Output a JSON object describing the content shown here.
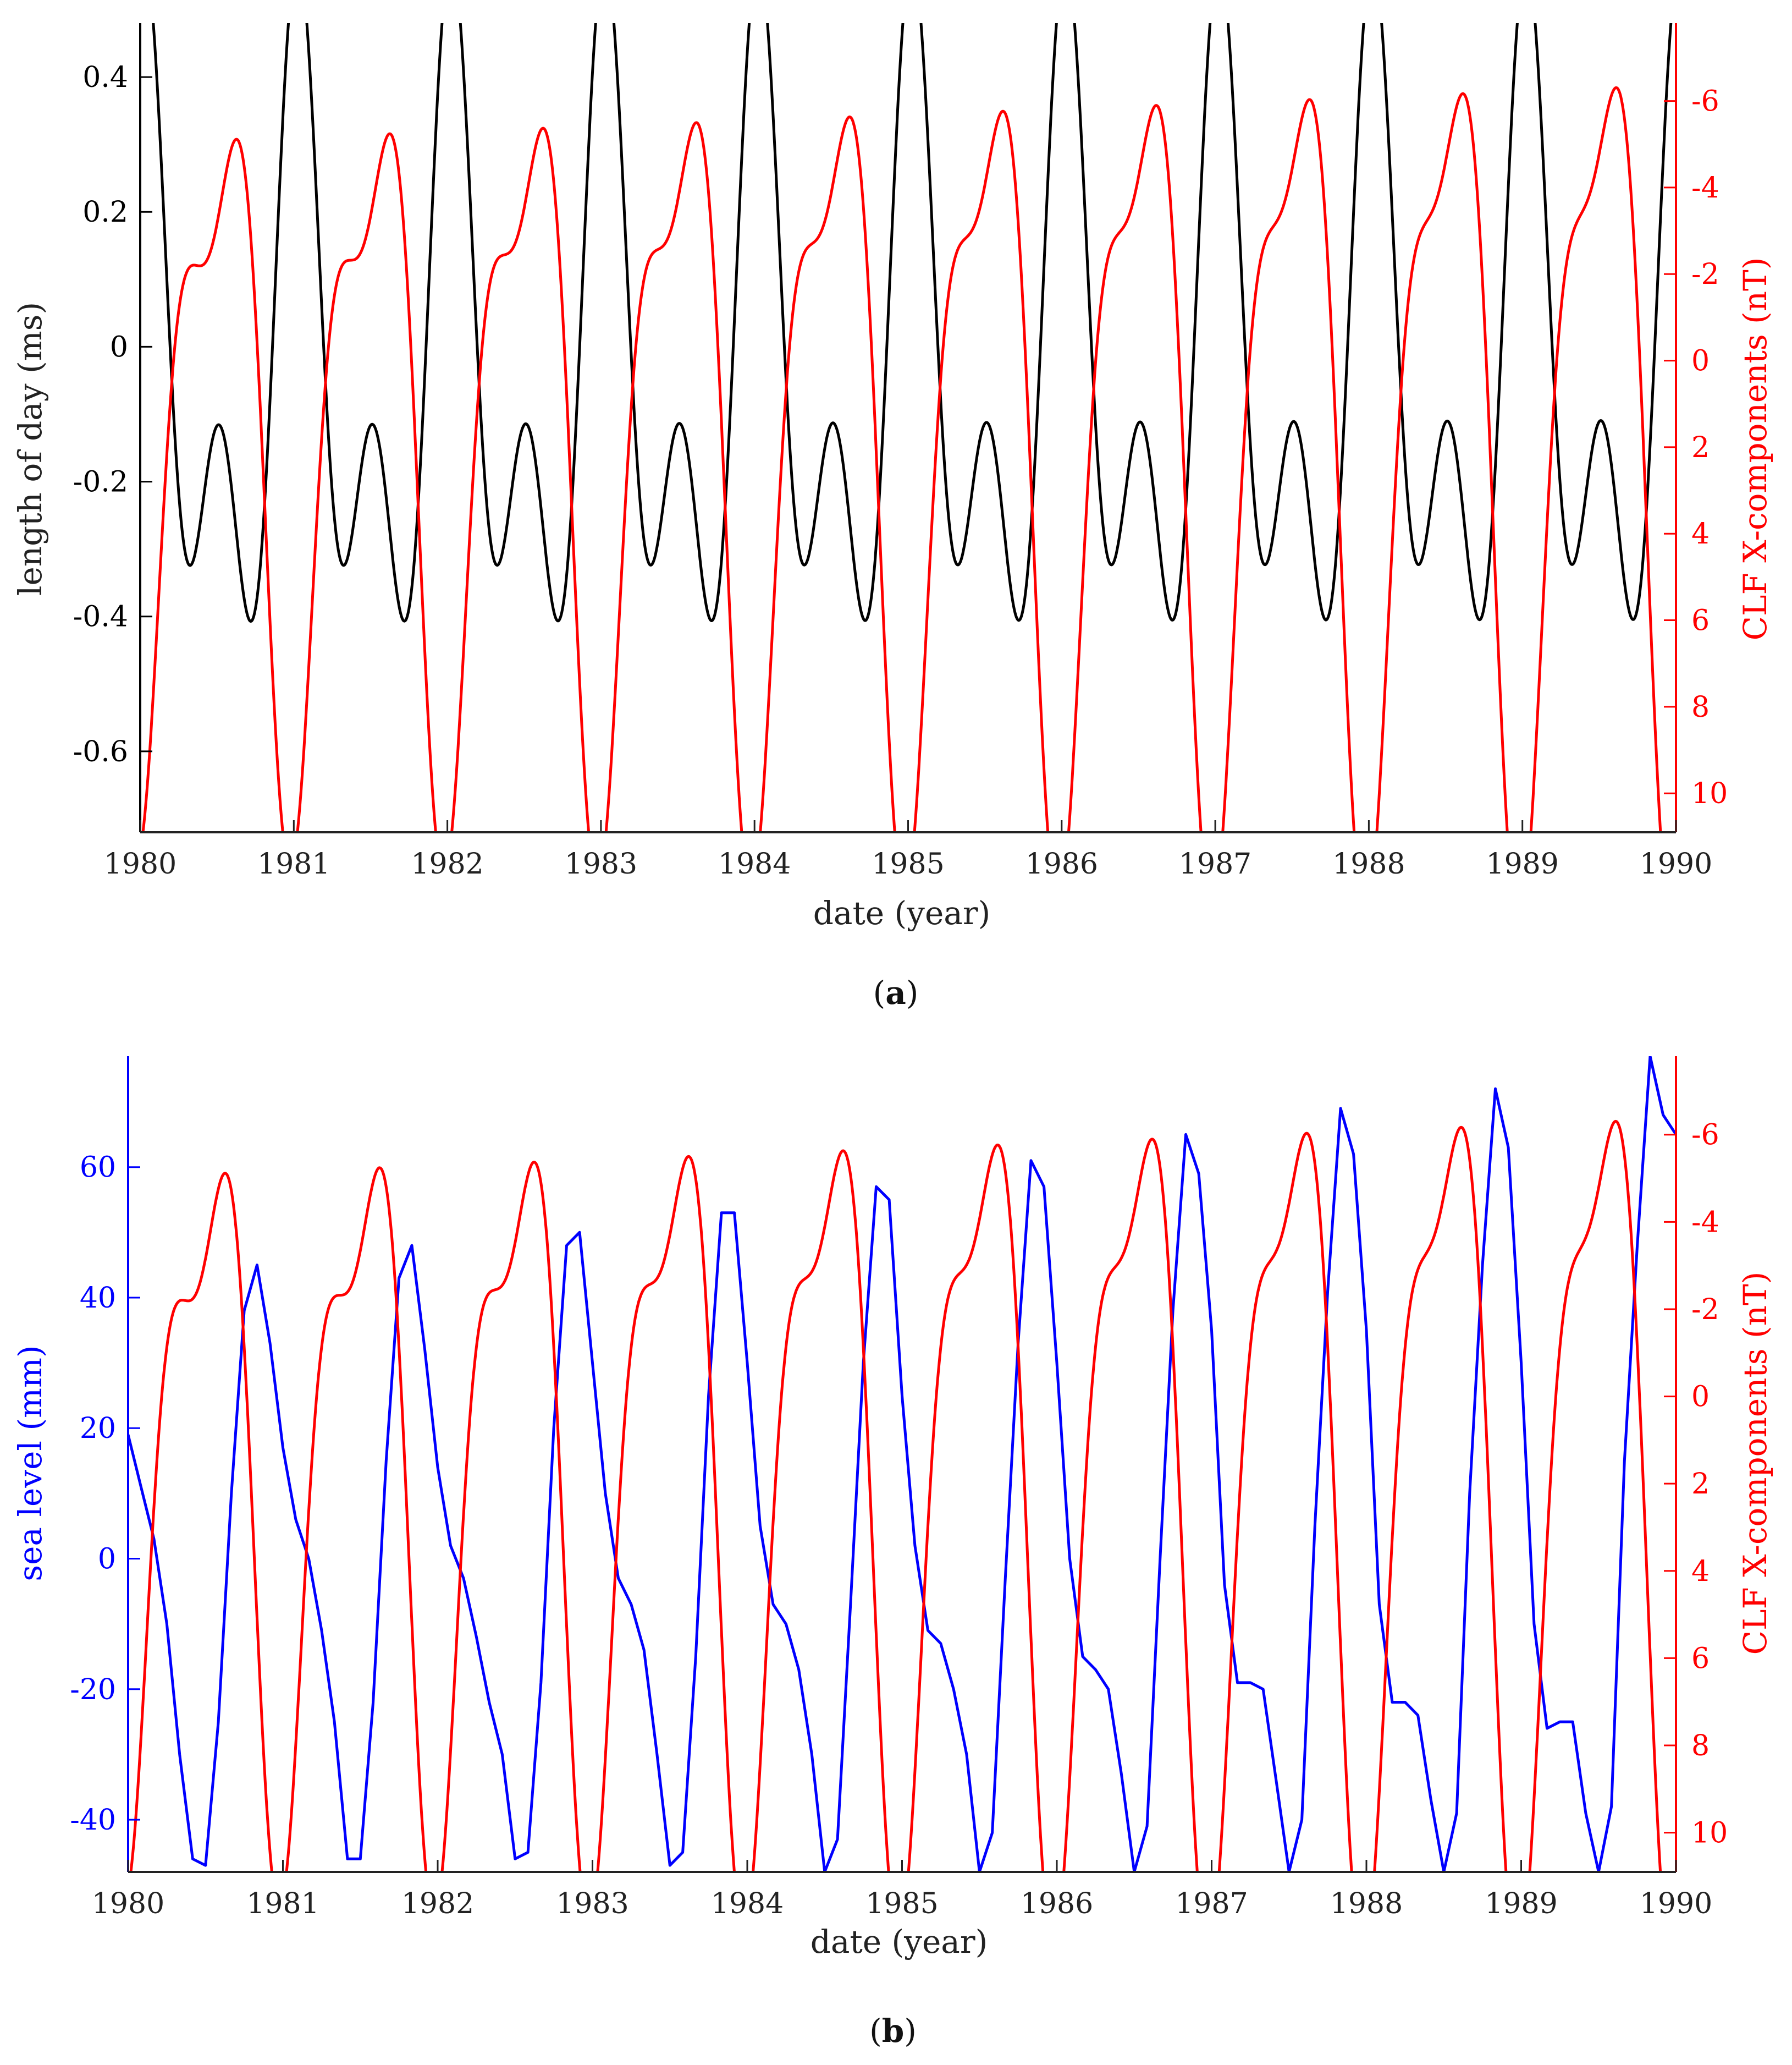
{
  "chart_data": [
    {
      "panel": "a",
      "caption": "(a)",
      "type": "line",
      "xlabel": "date (year)",
      "xlim": [
        1980,
        1990
      ],
      "x_ticks": [
        "1980",
        "1981",
        "1982",
        "1983",
        "1984",
        "1985",
        "1986",
        "1987",
        "1988",
        "1989",
        "1990"
      ],
      "left_axis": {
        "label": "length of day (ms)",
        "color": "#000000",
        "ylim": [
          -0.72,
          0.48
        ],
        "ticks": [
          {
            "value": 0.4,
            "label": "0.4"
          },
          {
            "value": 0.2,
            "label": "0.2"
          },
          {
            "value": 0.0,
            "label": "0"
          },
          {
            "value": -0.2,
            "label": "-0.2"
          },
          {
            "value": -0.4,
            "label": "-0.4"
          },
          {
            "value": -0.6,
            "label": "-0.6"
          }
        ]
      },
      "right_axis": {
        "label": "CLF X-components (nT)",
        "color": "#ff0000",
        "reversed": true,
        "ylim": [
          -7.8,
          10.9
        ],
        "ticks": [
          {
            "value": -6,
            "label": "-6"
          },
          {
            "value": -4,
            "label": "-4"
          },
          {
            "value": -2,
            "label": "-2"
          },
          {
            "value": 0,
            "label": "0"
          },
          {
            "value": 2,
            "label": "2"
          },
          {
            "value": 4,
            "label": "4"
          },
          {
            "value": 6,
            "label": "6"
          },
          {
            "value": 8,
            "label": "8"
          },
          {
            "value": 10,
            "label": "10"
          }
        ]
      },
      "series": [
        {
          "name": "length of day",
          "axis": "left",
          "color": "#000000",
          "model": {
            "type": "lod",
            "mean": -0.04,
            "annual_amp": 0.35,
            "semi_amp": 0.27,
            "annual_phase": 0.54,
            "semi_phase": 0.27,
            "amp_drift": -0.002
          }
        },
        {
          "name": "CLF X-component",
          "axis": "right",
          "color": "#ff0000",
          "model": {
            "type": "clf",
            "mean": 1.5,
            "annual_amp": 7.2,
            "semi_amp": 3.0,
            "annual_phase": 0.5,
            "semi_phase": 0.21,
            "amp_drift": 0.025
          }
        }
      ]
    },
    {
      "panel": "b",
      "caption": "(b)",
      "type": "line",
      "xlabel": "date (year)",
      "xlim": [
        1980,
        1990
      ],
      "x_ticks": [
        "1980",
        "1981",
        "1982",
        "1983",
        "1984",
        "1985",
        "1986",
        "1987",
        "1988",
        "1989",
        "1990"
      ],
      "left_axis": {
        "label": "sea level (mm)",
        "color": "#0000ff",
        "ylim": [
          -48,
          77
        ],
        "ticks": [
          {
            "value": 60,
            "label": "60"
          },
          {
            "value": 40,
            "label": "40"
          },
          {
            "value": 20,
            "label": "20"
          },
          {
            "value": 0,
            "label": "0"
          },
          {
            "value": -20,
            "label": "-20"
          },
          {
            "value": -40,
            "label": "-40"
          }
        ]
      },
      "right_axis": {
        "label": "CLF X-components (nT)",
        "color": "#ff0000",
        "reversed": true,
        "ylim": [
          -7.8,
          10.9
        ],
        "ticks": [
          {
            "value": -6,
            "label": "-6"
          },
          {
            "value": -4,
            "label": "-4"
          },
          {
            "value": -2,
            "label": "-2"
          },
          {
            "value": 0,
            "label": "0"
          },
          {
            "value": 2,
            "label": "2"
          },
          {
            "value": 4,
            "label": "4"
          },
          {
            "value": 6,
            "label": "6"
          },
          {
            "value": 8,
            "label": "8"
          },
          {
            "value": 10,
            "label": "10"
          }
        ]
      },
      "series": [
        {
          "name": "sea level",
          "axis": "left",
          "color": "#0000ff",
          "x": [
            1980.0,
            1980.083,
            1980.167,
            1980.25,
            1980.333,
            1980.417,
            1980.5,
            1980.583,
            1980.667,
            1980.75,
            1980.833,
            1980.917,
            1981.0,
            1981.083,
            1981.167,
            1981.25,
            1981.333,
            1981.417,
            1981.5,
            1981.583,
            1981.667,
            1981.75,
            1981.833,
            1981.917,
            1982.0,
            1982.083,
            1982.167,
            1982.25,
            1982.333,
            1982.417,
            1982.5,
            1982.583,
            1982.667,
            1982.75,
            1982.833,
            1982.917,
            1983.0,
            1983.083,
            1983.167,
            1983.25,
            1983.333,
            1983.417,
            1983.5,
            1983.583,
            1983.667,
            1983.75,
            1983.833,
            1983.917,
            1984.0,
            1984.083,
            1984.167,
            1984.25,
            1984.333,
            1984.417,
            1984.5,
            1984.583,
            1984.667,
            1984.75,
            1984.833,
            1984.917,
            1985.0,
            1985.083,
            1985.167,
            1985.25,
            1985.333,
            1985.417,
            1985.5,
            1985.583,
            1985.667,
            1985.75,
            1985.833,
            1985.917,
            1986.0,
            1986.083,
            1986.167,
            1986.25,
            1986.333,
            1986.417,
            1986.5,
            1986.583,
            1986.667,
            1986.75,
            1986.833,
            1986.917,
            1987.0,
            1987.083,
            1987.167,
            1987.25,
            1987.333,
            1987.417,
            1987.5,
            1987.583,
            1987.667,
            1987.75,
            1987.833,
            1987.917,
            1988.0,
            1988.083,
            1988.167,
            1988.25,
            1988.333,
            1988.417,
            1988.5,
            1988.583,
            1988.667,
            1988.75,
            1988.833,
            1988.917,
            1989.0,
            1989.083,
            1989.167,
            1989.25,
            1989.333,
            1989.417,
            1989.5,
            1989.583,
            1989.667,
            1989.75,
            1989.833,
            1989.917,
            1990.0
          ],
          "values": [
            19,
            11,
            3,
            -10,
            -30,
            -46,
            -47,
            -25,
            10,
            38,
            45,
            33,
            17,
            6,
            0,
            -11,
            -25,
            -46,
            -46,
            -22,
            15,
            43,
            48,
            32,
            14,
            2,
            -3,
            -12,
            -22,
            -30,
            -46,
            -45,
            -19,
            20,
            48,
            50,
            30,
            10,
            -3,
            -7,
            -14,
            -30,
            -47,
            -45,
            -15,
            25,
            53,
            53,
            30,
            5,
            -7,
            -10,
            -17,
            -30,
            -48,
            -43,
            -7,
            30,
            57,
            55,
            25,
            2,
            -11,
            -13,
            -20,
            -30,
            -48,
            -42,
            -3,
            33,
            61,
            57,
            30,
            0,
            -15,
            -17,
            -20,
            -33,
            -48,
            -41,
            0,
            38,
            65,
            59,
            35,
            -4,
            -19,
            -19,
            -20,
            -34,
            -48,
            -40,
            5,
            41,
            69,
            62,
            35,
            -7,
            -22,
            -22,
            -24,
            -37,
            -48,
            -39,
            10,
            45,
            72,
            63,
            30,
            -10,
            -26,
            -25,
            -25,
            -39,
            -48,
            -38,
            15,
            48,
            77,
            68,
            65
          ]
        },
        {
          "name": "CLF X-component",
          "axis": "right",
          "color": "#ff0000",
          "model": {
            "type": "clf",
            "mean": 1.5,
            "annual_amp": 7.2,
            "semi_amp": 3.0,
            "annual_phase": 0.5,
            "semi_phase": 0.21,
            "amp_drift": 0.025
          }
        }
      ]
    }
  ]
}
